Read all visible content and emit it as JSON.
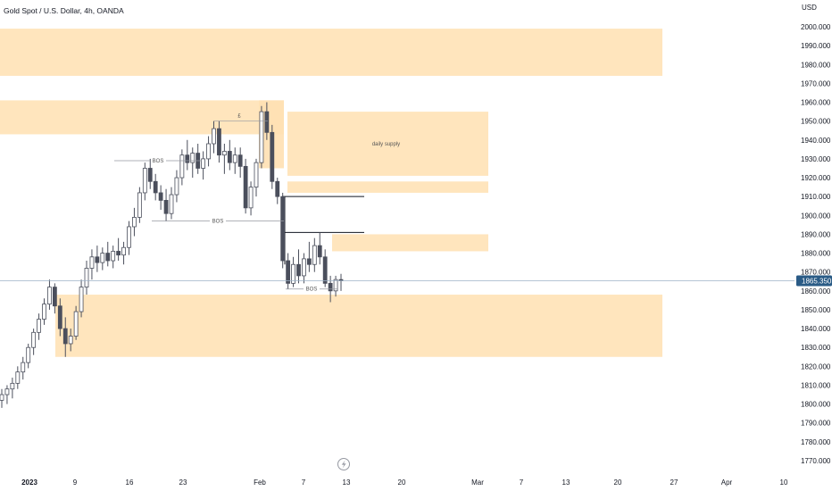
{
  "header": {
    "title": "Gold Spot / U.S. Dollar, 4h, OANDA"
  },
  "chart_data": {
    "type": "candlestick",
    "title": "Gold Spot / U.S. Dollar, 4h, OANDA",
    "y_axis": {
      "currency": "USD",
      "ylim": [
        1765,
        2010
      ],
      "ticks": [
        2000,
        1990,
        1980,
        1970,
        1960,
        1950,
        1940,
        1930,
        1920,
        1910,
        1900,
        1890,
        1880,
        1870,
        1860,
        1850,
        1840,
        1830,
        1820,
        1810,
        1800,
        1790,
        1780,
        1770
      ],
      "tick_labels": [
        "2000.000",
        "1990.000",
        "1980.000",
        "1970.000",
        "1960.000",
        "1950.000",
        "1940.000",
        "1930.000",
        "1920.000",
        "1910.000",
        "1900.000",
        "1890.000",
        "1880.000",
        "1870.000",
        "1860.000",
        "1850.000",
        "1840.000",
        "1830.000",
        "1820.000",
        "1810.000",
        "1800.000",
        "1790.000",
        "1780.000",
        "1770.000"
      ]
    },
    "x_axis": {
      "tick_labels": [
        "2023",
        "9",
        "16",
        "23",
        "Feb",
        "7",
        "13",
        "20",
        "Mar",
        "7",
        "13",
        "20",
        "27",
        "Apr",
        "10"
      ],
      "bold_labels": [
        "2023"
      ]
    },
    "last_price": {
      "value": 1865.35,
      "label": "1865.350",
      "color": "#2a5b86"
    },
    "colors": {
      "zone": "#ffe0b2",
      "candle": "#4b4f5c",
      "line": "#131722",
      "label_line": "#9598a1"
    },
    "zones": [
      {
        "x0": 0,
        "x1": 1.0,
        "y_top": 1999,
        "y_bottom": 1974
      },
      {
        "x0": 0,
        "x1": 0.455,
        "y_top": 1961,
        "y_bottom": 1943
      },
      {
        "x0": 0.44,
        "x1": 0.455,
        "y_top": 1961,
        "y_bottom": 1925,
        "label": ""
      },
      {
        "x0": 0.455,
        "x1": 0.738,
        "y_top": 1955,
        "y_bottom": 1921,
        "label": "daily supply"
      },
      {
        "x0": 0.455,
        "x1": 0.738,
        "y_top": 1918,
        "y_bottom": 1912
      },
      {
        "x0": 0.52,
        "x1": 0.738,
        "y_top": 1890,
        "y_bottom": 1881
      },
      {
        "x0": 0.07,
        "x1": 1.0,
        "y_top": 1858,
        "y_bottom": 1825
      }
    ],
    "annotations": [
      {
        "type": "bos",
        "label": "BOS",
        "y": 1929
      },
      {
        "type": "bos",
        "label": "BOS",
        "y": 1897
      },
      {
        "type": "bos",
        "label": "BOS",
        "y": 1861
      },
      {
        "type": "marker",
        "label": "£",
        "y": 1951
      },
      {
        "type": "level",
        "label": "",
        "y": 1910
      },
      {
        "type": "level",
        "label": "",
        "y": 1891
      }
    ],
    "candles": [
      {
        "o": 1802,
        "h": 1808,
        "l": 1798,
        "c": 1805
      },
      {
        "o": 1805,
        "h": 1810,
        "l": 1800,
        "c": 1808
      },
      {
        "o": 1808,
        "h": 1814,
        "l": 1803,
        "c": 1811
      },
      {
        "o": 1811,
        "h": 1820,
        "l": 1808,
        "c": 1817
      },
      {
        "o": 1817,
        "h": 1825,
        "l": 1813,
        "c": 1822
      },
      {
        "o": 1822,
        "h": 1832,
        "l": 1819,
        "c": 1830
      },
      {
        "o": 1830,
        "h": 1840,
        "l": 1826,
        "c": 1838
      },
      {
        "o": 1838,
        "h": 1848,
        "l": 1834,
        "c": 1845
      },
      {
        "o": 1845,
        "h": 1856,
        "l": 1842,
        "c": 1853
      },
      {
        "o": 1853,
        "h": 1866,
        "l": 1850,
        "c": 1862
      },
      {
        "o": 1862,
        "h": 1864,
        "l": 1848,
        "c": 1852
      },
      {
        "o": 1852,
        "h": 1856,
        "l": 1836,
        "c": 1840
      },
      {
        "o": 1840,
        "h": 1846,
        "l": 1825,
        "c": 1832
      },
      {
        "o": 1832,
        "h": 1840,
        "l": 1828,
        "c": 1836
      },
      {
        "o": 1836,
        "h": 1852,
        "l": 1834,
        "c": 1849
      },
      {
        "o": 1849,
        "h": 1866,
        "l": 1846,
        "c": 1862
      },
      {
        "o": 1862,
        "h": 1876,
        "l": 1858,
        "c": 1872
      },
      {
        "o": 1872,
        "h": 1882,
        "l": 1866,
        "c": 1878
      },
      {
        "o": 1878,
        "h": 1884,
        "l": 1870,
        "c": 1875
      },
      {
        "o": 1875,
        "h": 1883,
        "l": 1871,
        "c": 1880
      },
      {
        "o": 1880,
        "h": 1886,
        "l": 1873,
        "c": 1876
      },
      {
        "o": 1876,
        "h": 1884,
        "l": 1872,
        "c": 1881
      },
      {
        "o": 1881,
        "h": 1888,
        "l": 1876,
        "c": 1879
      },
      {
        "o": 1879,
        "h": 1886,
        "l": 1874,
        "c": 1883
      },
      {
        "o": 1883,
        "h": 1897,
        "l": 1879,
        "c": 1894
      },
      {
        "o": 1894,
        "h": 1904,
        "l": 1889,
        "c": 1899
      },
      {
        "o": 1899,
        "h": 1915,
        "l": 1896,
        "c": 1912
      },
      {
        "o": 1912,
        "h": 1928,
        "l": 1908,
        "c": 1925
      },
      {
        "o": 1925,
        "h": 1930,
        "l": 1914,
        "c": 1918
      },
      {
        "o": 1918,
        "h": 1922,
        "l": 1908,
        "c": 1912
      },
      {
        "o": 1912,
        "h": 1916,
        "l": 1903,
        "c": 1908
      },
      {
        "o": 1908,
        "h": 1914,
        "l": 1897,
        "c": 1901
      },
      {
        "o": 1901,
        "h": 1915,
        "l": 1898,
        "c": 1911
      },
      {
        "o": 1911,
        "h": 1924,
        "l": 1907,
        "c": 1920
      },
      {
        "o": 1920,
        "h": 1935,
        "l": 1916,
        "c": 1932
      },
      {
        "o": 1932,
        "h": 1940,
        "l": 1924,
        "c": 1928
      },
      {
        "o": 1928,
        "h": 1936,
        "l": 1920,
        "c": 1933
      },
      {
        "o": 1933,
        "h": 1938,
        "l": 1922,
        "c": 1925
      },
      {
        "o": 1925,
        "h": 1934,
        "l": 1919,
        "c": 1930
      },
      {
        "o": 1930,
        "h": 1942,
        "l": 1926,
        "c": 1938
      },
      {
        "o": 1938,
        "h": 1950,
        "l": 1933,
        "c": 1946
      },
      {
        "o": 1946,
        "h": 1950,
        "l": 1928,
        "c": 1932
      },
      {
        "o": 1932,
        "h": 1938,
        "l": 1922,
        "c": 1934
      },
      {
        "o": 1934,
        "h": 1940,
        "l": 1924,
        "c": 1928
      },
      {
        "o": 1928,
        "h": 1936,
        "l": 1922,
        "c": 1932
      },
      {
        "o": 1932,
        "h": 1936,
        "l": 1920,
        "c": 1926
      },
      {
        "o": 1926,
        "h": 1930,
        "l": 1901,
        "c": 1904
      },
      {
        "o": 1904,
        "h": 1918,
        "l": 1900,
        "c": 1915
      },
      {
        "o": 1915,
        "h": 1930,
        "l": 1910,
        "c": 1928
      },
      {
        "o": 1928,
        "h": 1958,
        "l": 1925,
        "c": 1955
      },
      {
        "o": 1955,
        "h": 1960,
        "l": 1940,
        "c": 1944
      },
      {
        "o": 1944,
        "h": 1948,
        "l": 1914,
        "c": 1918
      },
      {
        "o": 1918,
        "h": 1920,
        "l": 1906,
        "c": 1910
      },
      {
        "o": 1910,
        "h": 1912,
        "l": 1872,
        "c": 1876
      },
      {
        "o": 1876,
        "h": 1880,
        "l": 1861,
        "c": 1864
      },
      {
        "o": 1864,
        "h": 1878,
        "l": 1862,
        "c": 1874
      },
      {
        "o": 1874,
        "h": 1882,
        "l": 1864,
        "c": 1868
      },
      {
        "o": 1868,
        "h": 1880,
        "l": 1864,
        "c": 1877
      },
      {
        "o": 1877,
        "h": 1886,
        "l": 1870,
        "c": 1874
      },
      {
        "o": 1874,
        "h": 1888,
        "l": 1870,
        "c": 1884
      },
      {
        "o": 1884,
        "h": 1891,
        "l": 1874,
        "c": 1878
      },
      {
        "o": 1878,
        "h": 1882,
        "l": 1862,
        "c": 1864
      },
      {
        "o": 1864,
        "h": 1868,
        "l": 1854,
        "c": 1860
      },
      {
        "o": 1860,
        "h": 1868,
        "l": 1857,
        "c": 1866
      },
      {
        "o": 1866,
        "h": 1869,
        "l": 1860,
        "c": 1865.35
      }
    ]
  }
}
